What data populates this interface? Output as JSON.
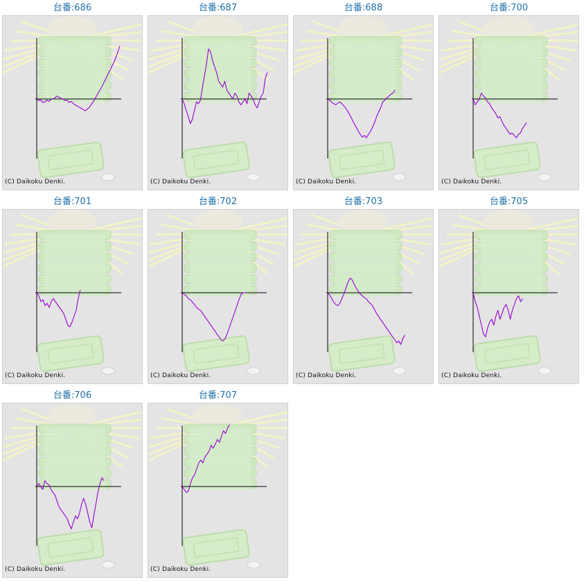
{
  "machine_label_prefix": "台番:",
  "copyright": "(C) Daikoku Denki.",
  "colors": {
    "title": "#1f6fa8",
    "line": "#9400d3",
    "axis": "#000000",
    "panel_bg": "#e4e4e4"
  },
  "chart_data": [
    {
      "type": "line",
      "title": "台番:686",
      "machine": "686",
      "y": [
        0,
        -3,
        -2,
        -6,
        -5,
        -2,
        -4,
        -1,
        0,
        2,
        5,
        3,
        1,
        0,
        -3,
        -2,
        -6,
        -4,
        -8,
        -10,
        -12,
        -14,
        -16,
        -18,
        -20,
        -17,
        -14,
        -9,
        -4,
        2,
        8,
        14,
        20,
        27,
        34,
        41,
        48,
        55,
        62,
        70,
        80,
        90
      ]
    },
    {
      "type": "line",
      "title": "台番:687",
      "machine": "687",
      "y": [
        0,
        -8,
        -20,
        -30,
        -42,
        -35,
        -20,
        -5,
        -8,
        -2,
        20,
        40,
        60,
        85,
        80,
        65,
        55,
        45,
        30,
        25,
        20,
        30,
        15,
        10,
        5,
        0,
        10,
        5,
        -5,
        -10,
        -5,
        0,
        -8,
        10,
        5,
        0,
        -10,
        -15,
        -5,
        5,
        10,
        35,
        45
      ]
    },
    {
      "type": "line",
      "title": "台番:688",
      "machine": "688",
      "y": [
        0,
        -2,
        -6,
        -8,
        -10,
        -7,
        -5,
        -8,
        -12,
        -16,
        -22,
        -28,
        -35,
        -42,
        -48,
        -55,
        -60,
        -65,
        -62,
        -66,
        -60,
        -55,
        -48,
        -40,
        -30,
        -22,
        -15,
        -5,
        -2,
        2,
        5,
        8,
        10,
        15
      ]
    },
    {
      "type": "line",
      "title": "台番:700",
      "machine": "700",
      "y": [
        0,
        -10,
        -5,
        0,
        10,
        5,
        2,
        -5,
        -8,
        -15,
        -20,
        -25,
        -32,
        -30,
        -38,
        -45,
        -50,
        -55,
        -60,
        -58,
        -62,
        -66,
        -60,
        -58,
        -50,
        -45,
        -40
      ]
    },
    {
      "type": "line",
      "title": "台番:701",
      "machine": "701",
      "y": [
        0,
        -5,
        -15,
        -12,
        -22,
        -18,
        -25,
        -15,
        -10,
        -15,
        -20,
        -25,
        -30,
        -35,
        -45,
        -55,
        -58,
        -50,
        -40,
        -30,
        -10,
        5
      ]
    },
    {
      "type": "line",
      "title": "台番:702",
      "machine": "702",
      "y": [
        0,
        -3,
        -5,
        -10,
        -12,
        -16,
        -20,
        -25,
        -28,
        -30,
        -35,
        -40,
        -45,
        -50,
        -55,
        -60,
        -65,
        -70,
        -75,
        -80,
        -82,
        -78,
        -70,
        -60,
        -50,
        -40,
        -30,
        -20,
        -10,
        -2,
        0,
        0
      ]
    },
    {
      "type": "line",
      "title": "台番:703",
      "machine": "703",
      "y": [
        0,
        -4,
        -10,
        -16,
        -20,
        -22,
        -18,
        -10,
        -2,
        8,
        18,
        25,
        22,
        15,
        8,
        3,
        -2,
        -5,
        -8,
        -10,
        -15,
        -18,
        -22,
        -28,
        -35,
        -40,
        -45,
        -50,
        -55,
        -60,
        -65,
        -70,
        -75,
        -80,
        -85,
        -82,
        -88,
        -78,
        -72
      ]
    },
    {
      "type": "line",
      "title": "台番:705",
      "machine": "705",
      "y": [
        0,
        -15,
        -25,
        -40,
        -55,
        -70,
        -75,
        -60,
        -50,
        -45,
        -55,
        -40,
        -30,
        -45,
        -35,
        -25,
        -20,
        -30,
        -45,
        -30,
        -20,
        -10,
        -5,
        -15,
        -10
      ]
    },
    {
      "type": "line",
      "title": "台番:706",
      "machine": "706",
      "y": [
        0,
        5,
        0,
        -5,
        10,
        5,
        3,
        -5,
        -10,
        -15,
        -25,
        -35,
        -40,
        -45,
        -50,
        -55,
        -65,
        -72,
        -60,
        -50,
        -55,
        -45,
        -30,
        -20,
        -30,
        -45,
        -60,
        -70,
        -50,
        -30,
        -10,
        5,
        15,
        10
      ]
    },
    {
      "type": "line",
      "title": "台番:707",
      "machine": "707",
      "y": [
        0,
        -5,
        -10,
        -8,
        5,
        15,
        20,
        30,
        40,
        45,
        40,
        50,
        55,
        60,
        70,
        65,
        72,
        80,
        75,
        85,
        95,
        90,
        100,
        105
      ]
    }
  ]
}
